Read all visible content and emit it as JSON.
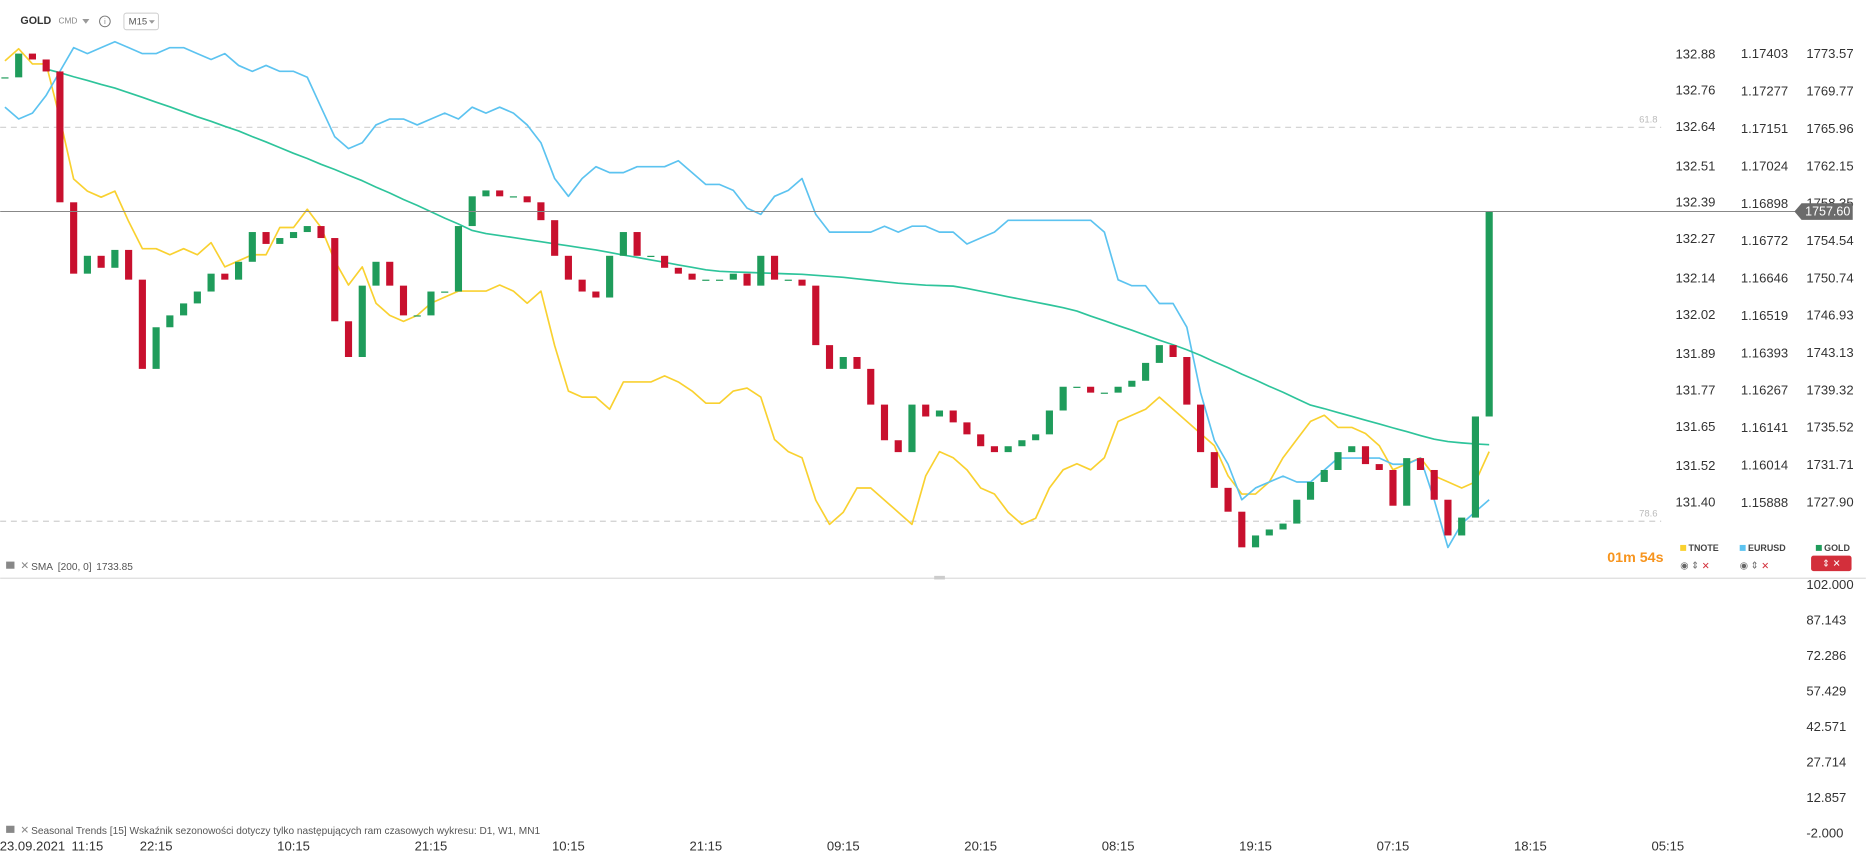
{
  "header": {
    "symbol": "GOLD",
    "market": "CMD",
    "interval": "M15",
    "countdown": "01m 54s"
  },
  "chart_data": [
    {
      "type": "candlestick",
      "categories": [
        null,
        null,
        "23.09.2021",
        null,
        null,
        null,
        "11:15",
        null,
        null,
        null,
        null,
        "22:15",
        null,
        null,
        null,
        null,
        null,
        null,
        null,
        null,
        null,
        "10:15",
        null,
        null,
        null,
        null,
        null,
        null,
        null,
        null,
        null,
        "21:15",
        null,
        null,
        null,
        null,
        null,
        null,
        null,
        null,
        null,
        "10:15",
        null,
        null,
        null,
        null,
        null,
        null,
        null,
        null,
        null,
        "21:15",
        null,
        null,
        null,
        null,
        null,
        null,
        null,
        null,
        null,
        "09:15",
        null,
        null,
        null,
        null,
        null,
        null,
        null,
        null,
        null,
        "20:15",
        null,
        null,
        null,
        null,
        null,
        null,
        null,
        null,
        null,
        "08:15",
        null,
        null,
        null,
        null,
        null,
        null,
        null,
        null,
        null,
        "19:15",
        null,
        null,
        null,
        null,
        null,
        null,
        null,
        null,
        null,
        "07:15",
        null,
        null,
        null,
        null,
        null,
        null,
        null,
        null,
        null,
        "18:15",
        null,
        null,
        null,
        null,
        null,
        null,
        null,
        null,
        null,
        "05:15"
      ],
      "series": [
        {
          "name": "TNOTE",
          "color": "#f9d130",
          "style": "line",
          "axis": "y2",
          "values": [
            132.86,
            132.9,
            132.85,
            132.85,
            132.67,
            132.47,
            132.43,
            132.41,
            132.43,
            132.33,
            132.24,
            132.24,
            132.22,
            132.24,
            132.22,
            132.26,
            132.18,
            132.2,
            132.22,
            132.22,
            132.31,
            132.31,
            132.37,
            132.31,
            132.2,
            132.12,
            132.18,
            132.06,
            132.02,
            132.0,
            132.02,
            132.06,
            132.08,
            132.1,
            132.1,
            132.1,
            132.12,
            132.1,
            132.06,
            132.1,
            131.92,
            131.77,
            131.75,
            131.75,
            131.71,
            131.8,
            131.8,
            131.8,
            131.82,
            131.8,
            131.77,
            131.73,
            131.73,
            131.77,
            131.78,
            131.75,
            131.61,
            131.57,
            131.55,
            131.41,
            131.33,
            131.37,
            131.45,
            131.45,
            131.41,
            131.37,
            131.33,
            131.49,
            131.57,
            131.55,
            131.51,
            131.45,
            131.43,
            131.37,
            131.33,
            131.35,
            131.45,
            131.51,
            131.53,
            131.51,
            131.55,
            131.67,
            131.69,
            131.71,
            131.75,
            131.71,
            131.67,
            131.63,
            131.59,
            131.49,
            131.43,
            131.43,
            131.47,
            131.55,
            131.61,
            131.67,
            131.69,
            131.65,
            131.65,
            131.63,
            131.59,
            131.51,
            131.53,
            131.55,
            131.49,
            131.47,
            131.45,
            131.47,
            131.57,
            null,
            null,
            null,
            null,
            null,
            null,
            null,
            null,
            null,
            null,
            null,
            null,
            null
          ]
        },
        {
          "name": "EURUSD",
          "color": "#5cc3f0",
          "style": "line",
          "axis": "y3",
          "values": [
            1.17226,
            1.17186,
            1.17206,
            1.17266,
            1.17347,
            1.17427,
            1.17407,
            1.17427,
            1.17447,
            1.17427,
            1.17407,
            1.17407,
            1.17427,
            1.17427,
            1.17407,
            1.17387,
            1.17407,
            1.17367,
            1.17347,
            1.17367,
            1.17347,
            1.17347,
            1.17327,
            1.17226,
            1.17126,
            1.17086,
            1.17106,
            1.17166,
            1.17186,
            1.17186,
            1.17166,
            1.17186,
            1.17206,
            1.17186,
            1.17226,
            1.17206,
            1.17226,
            1.17206,
            1.17166,
            1.17106,
            1.16985,
            1.16925,
            1.16985,
            1.17025,
            1.17005,
            1.17005,
            1.17025,
            1.17025,
            1.17025,
            1.17045,
            1.17005,
            1.16965,
            1.16965,
            1.16945,
            1.16885,
            1.16864,
            1.16925,
            1.16945,
            1.16985,
            1.16864,
            1.16804,
            1.16804,
            1.16804,
            1.16804,
            1.16824,
            1.16804,
            1.16824,
            1.16824,
            1.16804,
            1.16804,
            1.16764,
            1.16784,
            1.16804,
            1.16844,
            1.16844,
            1.16844,
            1.16844,
            1.16844,
            1.16844,
            1.16844,
            1.16804,
            1.16643,
            1.16623,
            1.16623,
            1.16563,
            1.16563,
            1.16483,
            1.16262,
            1.16101,
            1.1602,
            1.159,
            1.1594,
            1.1596,
            1.1598,
            1.1596,
            1.1596,
            1.16,
            1.16041,
            1.16041,
            1.16041,
            1.16041,
            1.1602,
            1.1602,
            1.16041,
            1.159,
            1.15739,
            1.15819,
            1.1586,
            1.159,
            null,
            null,
            null,
            null,
            null,
            null,
            null,
            null,
            null,
            null,
            null,
            null,
            null
          ]
        },
        {
          "name": "SMA",
          "params": "[200, 0]",
          "value_label": "1733.85",
          "color": "#2ec49b",
          "style": "line",
          "legend": false,
          "values": [
            null,
            null,
            null,
            1772.12,
            1771.74,
            1771.33,
            1770.96,
            1770.55,
            1770.18,
            1769.71,
            1769.24,
            1768.74,
            1768.27,
            1767.76,
            1767.25,
            1766.79,
            1766.28,
            1765.81,
            1765.23,
            1764.69,
            1764.11,
            1763.53,
            1763.0,
            1762.41,
            1761.88,
            1761.3,
            1760.74,
            1760.09,
            1759.49,
            1758.83,
            1758.23,
            1757.58,
            1756.93,
            1756.33,
            1755.67,
            1755.36,
            1755.15,
            1754.95,
            1754.73,
            1754.53,
            1754.31,
            1754.11,
            1753.89,
            1753.69,
            1753.43,
            1753.17,
            1752.93,
            1752.67,
            1752.43,
            1752.16,
            1751.92,
            1751.66,
            1751.51,
            1751.45,
            1751.4,
            1751.35,
            1751.3,
            1751.25,
            1751.2,
            1751.1,
            1751.0,
            1750.9,
            1750.75,
            1750.6,
            1750.45,
            1750.3,
            1750.2,
            1750.1,
            1750.05,
            1750.0,
            1749.76,
            1749.49,
            1749.2,
            1748.91,
            1748.65,
            1748.36,
            1748.09,
            1747.8,
            1747.46,
            1746.95,
            1746.48,
            1745.98,
            1745.51,
            1745.0,
            1744.49,
            1744.03,
            1743.52,
            1742.95,
            1742.3,
            1741.7,
            1741.04,
            1740.44,
            1739.79,
            1739.19,
            1738.53,
            1737.88,
            1737.52,
            1737.12,
            1736.74,
            1736.34,
            1735.96,
            1735.56,
            1735.18,
            1734.78,
            1734.41,
            1734.17,
            1734.03,
            1733.92,
            1733.85,
            null,
            null,
            null,
            null,
            null,
            null,
            null,
            null,
            null,
            null,
            null,
            null,
            null
          ]
        },
        {
          "name": "GOLD",
          "color": "#1f9c5b",
          "down_color": "#c8102e",
          "style": "candle",
          "values": [
            1771.27,
            1773.69,
            1773.09,
            1771.87,
            1758.54,
            1751.27,
            1753.09,
            1751.87,
            1753.69,
            1750.66,
            1741.57,
            1745.81,
            1747.02,
            1748.24,
            1749.45,
            1751.27,
            1750.66,
            1752.48,
            1755.51,
            1754.3,
            1754.9,
            1755.51,
            1756.12,
            1754.9,
            1746.42,
            1742.78,
            1750.05,
            1752.48,
            1750.05,
            1747.02,
            1747.02,
            1749.45,
            1749.45,
            1756.12,
            1759.15,
            1759.75,
            1759.15,
            1759.15,
            1758.54,
            1756.72,
            1753.09,
            1750.66,
            1749.45,
            1748.84,
            1753.09,
            1755.51,
            1753.09,
            1753.09,
            1751.87,
            1751.27,
            1750.66,
            1750.66,
            1750.66,
            1751.27,
            1750.05,
            1753.09,
            1750.66,
            1750.66,
            1750.05,
            1743.99,
            1741.57,
            1742.78,
            1741.57,
            1737.93,
            1734.3,
            1733.09,
            1737.93,
            1736.72,
            1737.33,
            1736.12,
            1734.9,
            1733.69,
            1733.09,
            1733.69,
            1734.3,
            1734.9,
            1737.33,
            1739.75,
            1739.75,
            1739.15,
            1739.15,
            1739.75,
            1740.36,
            1742.18,
            1743.99,
            1742.78,
            1737.93,
            1733.09,
            1729.45,
            1727.02,
            1723.39,
            1724.6,
            1725.21,
            1725.81,
            1728.24,
            1730.05,
            1731.27,
            1733.09,
            1733.69,
            1731.87,
            1731.27,
            1727.63,
            1732.48,
            1731.27,
            1728.24,
            1724.6,
            1726.42,
            1736.72,
            1757.6,
            null,
            null,
            null,
            null,
            null,
            null,
            null,
            null,
            null,
            null,
            null,
            null,
            null
          ]
        }
      ],
      "price_tag": "1757.60",
      "levels": [
        {
          "label": "61.8",
          "value": 1766.18
        },
        {
          "label": "78.6",
          "value": 1726.05
        }
      ],
      "ylim": [
        1720.24,
        1779.15
      ],
      "yticks": [
        1773.57,
        1769.77,
        1765.96,
        1762.15,
        1758.35,
        1754.54,
        1750.74,
        1746.93,
        1743.13,
        1739.32,
        1735.52,
        1731.71,
        {
          "value": 1727.9,
          "label": "1727.90"
        }
      ],
      "y2lim": [
        131.152,
        133.061
      ],
      "y2ticks": [
        132.88,
        132.76,
        132.64,
        132.51,
        132.39,
        132.27,
        132.14,
        132.02,
        131.89,
        131.77,
        131.65,
        131.52,
        {
          "value": 131.4,
          "label": "131.40"
        }
      ],
      "y3lim": [
        1.15635,
        1.17588
      ],
      "y3ticks": [
        1.17403,
        1.17277,
        1.17151,
        1.17024,
        1.16898,
        1.16772,
        1.16646,
        1.16519,
        1.16393,
        1.16267,
        1.16141,
        1.16014,
        1.15888
      ],
      "grid": false
    },
    {
      "type": "line",
      "title": "Seasonal Trends [15] Wskaźnik sezonowości dotyczy tylko następujących ram czasowych wykresu: D1, W1, MN1",
      "ylim": [
        -4,
        104.5
      ],
      "yticks": [
        {
          "value": 102,
          "label": "102.000"
        },
        87.143,
        72.286,
        57.429,
        42.571,
        27.714,
        12.857,
        {
          "value": -2,
          "label": "-2.000"
        }
      ],
      "grid": false
    }
  ]
}
